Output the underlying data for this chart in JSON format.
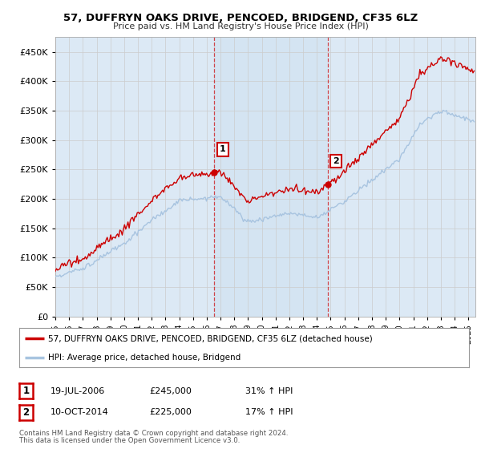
{
  "title": "57, DUFFRYN OAKS DRIVE, PENCOED, BRIDGEND, CF35 6LZ",
  "subtitle": "Price paid vs. HM Land Registry's House Price Index (HPI)",
  "ytick_values": [
    0,
    50000,
    100000,
    150000,
    200000,
    250000,
    300000,
    350000,
    400000,
    450000
  ],
  "ylim": [
    0,
    475000
  ],
  "xlim_start": 1995.0,
  "xlim_end": 2025.5,
  "sale1_year": 2006.54,
  "sale1_price": 245000,
  "sale1_label": "1",
  "sale1_date": "19-JUL-2006",
  "sale1_hpi": "31% ↑ HPI",
  "sale2_year": 2014.77,
  "sale2_price": 225000,
  "sale2_label": "2",
  "sale2_date": "10-OCT-2014",
  "sale2_hpi": "17% ↑ HPI",
  "legend_line1": "57, DUFFRYN OAKS DRIVE, PENCOED, BRIDGEND, CF35 6LZ (detached house)",
  "legend_line2": "HPI: Average price, detached house, Bridgend",
  "footer1": "Contains HM Land Registry data © Crown copyright and database right 2024.",
  "footer2": "This data is licensed under the Open Government Licence v3.0.",
  "hpi_color": "#a8c4e0",
  "sale_color": "#cc0000",
  "bg_color": "#dce9f5",
  "bg_highlight": "#cde0f0",
  "plot_bg": "#ffffff",
  "grid_color": "#cccccc"
}
